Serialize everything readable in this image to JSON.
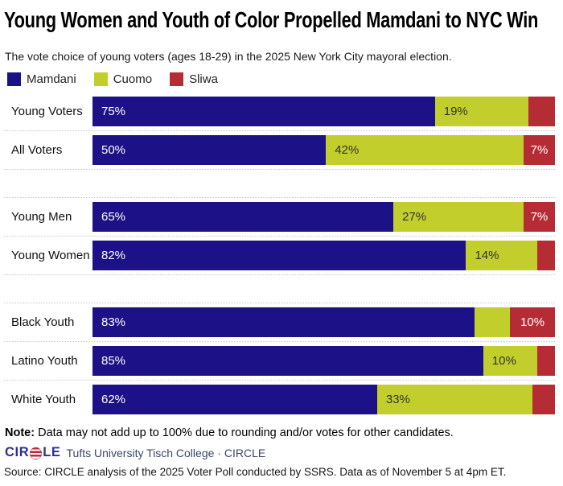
{
  "chart_data": {
    "type": "bar",
    "orientation": "horizontal",
    "stacked": true,
    "unit": "percent",
    "x_range": [
      0,
      100
    ],
    "grid": false,
    "legend_position": "top-left",
    "title": "Young Women and Youth of Color Propelled Mamdani to NYC Win",
    "subtitle": "The vote choice of young voters (ages 18-29) in the 2025 New York City mayoral election.",
    "series": [
      {
        "name": "Mamdani",
        "color": "#1c1187",
        "label_color": "#ffffff"
      },
      {
        "name": "Cuomo",
        "color": "#c2ce2c",
        "label_color": "#333333"
      },
      {
        "name": "Sliwa",
        "color": "#b52c34",
        "label_color": "#ffffff"
      }
    ],
    "groups": [
      {
        "rows": [
          {
            "label": "Young Voters",
            "values": [
              75,
              19,
              6
            ],
            "value_labels": [
              "75%",
              "19%",
              ""
            ]
          },
          {
            "label": "All Voters",
            "values": [
              50,
              42,
              7
            ],
            "value_labels": [
              "50%",
              "42%",
              "7%"
            ]
          }
        ]
      },
      {
        "rows": [
          {
            "label": "Young Men",
            "values": [
              65,
              27,
              7
            ],
            "value_labels": [
              "65%",
              "27%",
              "7%"
            ]
          },
          {
            "label": "Young Women",
            "values": [
              82,
              14,
              4
            ],
            "value_labels": [
              "82%",
              "14%",
              ""
            ]
          }
        ]
      },
      {
        "rows": [
          {
            "label": "Black Youth",
            "values": [
              83,
              6,
              10
            ],
            "value_labels": [
              "83%",
              "",
              "10%"
            ]
          },
          {
            "label": "Latino Youth",
            "values": [
              85,
              10,
              4
            ],
            "value_labels": [
              "85%",
              "10%",
              ""
            ]
          },
          {
            "label": "White Youth",
            "values": [
              62,
              33,
              5
            ],
            "value_labels": [
              "62%",
              "33%",
              ""
            ]
          }
        ]
      }
    ]
  },
  "note": {
    "prefix": "Note:",
    "text": "Data may not add up to 100% due to rounding and/or votes for other candidates."
  },
  "footer": {
    "logo_left": "CIR",
    "logo_right": "LE",
    "org": "Tufts University Tisch College · CIRCLE",
    "source": "Source: CIRCLE analysis of the 2025 Voter Poll conducted by SSRS. Data as of November 5 at 4pm ET."
  },
  "style": {
    "separator_color": "#c8c8c8",
    "logo_navy": "#2d3191",
    "logo_stripe_red": "#b52c34"
  }
}
